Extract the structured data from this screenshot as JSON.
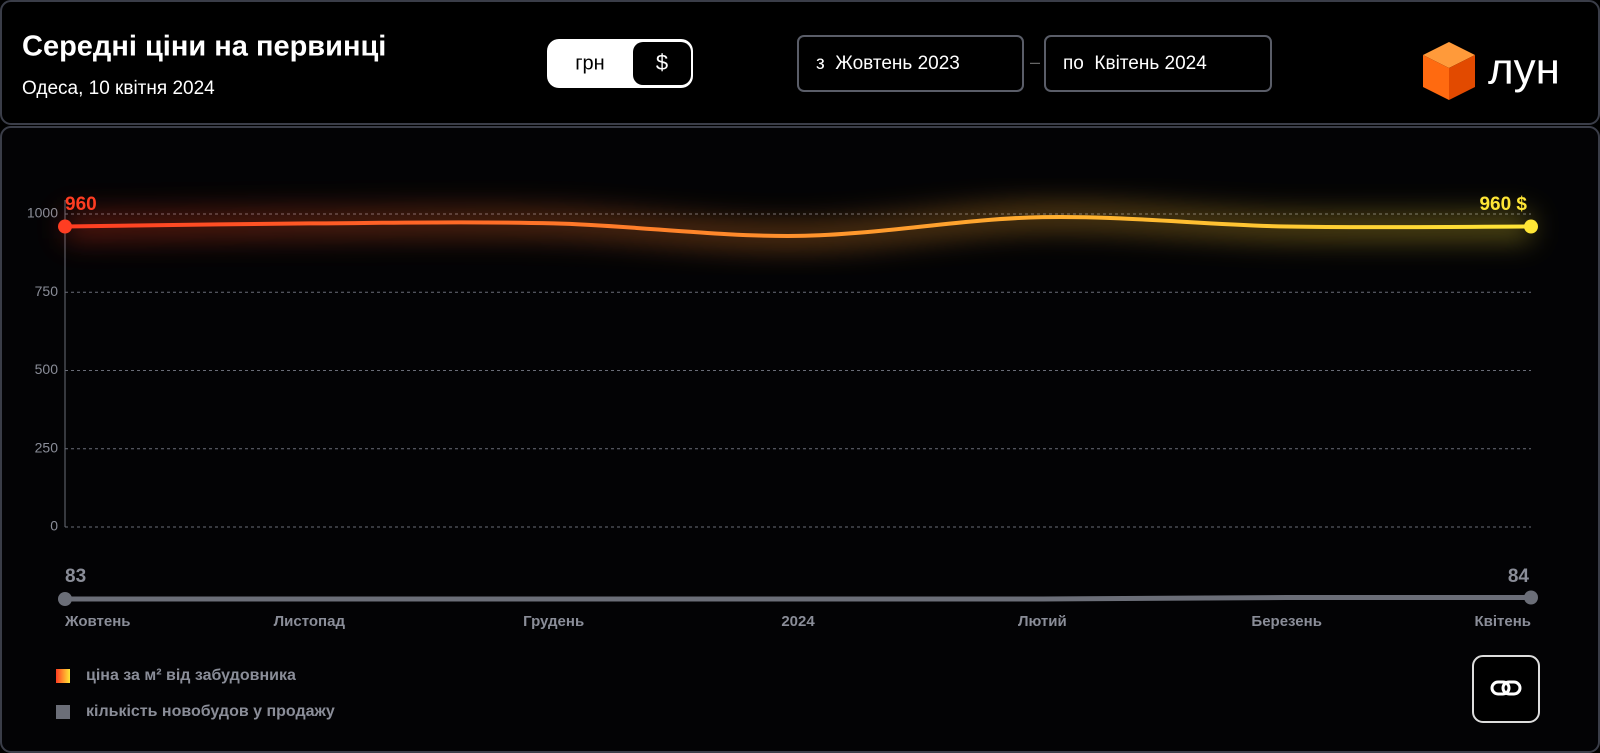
{
  "header": {
    "title": "Середні ціни на первинці",
    "subtitle": "Одеса, 10 квітня 2024",
    "currency_options": [
      "грн",
      "$"
    ],
    "date_from": "з  Жовтень 2023",
    "date_separator": "–",
    "date_to": "по  Квітень 2024",
    "logo": "лун"
  },
  "chart_data": {
    "type": "line",
    "categories": [
      "Жовтень",
      "Листопад",
      "Грудень",
      "2024",
      "Лютий",
      "Березень",
      "Квітень"
    ],
    "series": [
      {
        "name": "ціна за м² від забудовника",
        "color": [
          "#ff3d22",
          "#ffe636"
        ],
        "values": [
          960,
          970,
          970,
          930,
          990,
          960,
          960
        ],
        "value_labels": [
          null,
          null,
          null,
          null,
          null,
          null,
          "960 $"
        ]
      },
      {
        "name": "кількість новобудов у продажу",
        "color": "#6b6e78",
        "values": [
          83,
          83,
          83,
          83,
          83,
          84,
          84
        ]
      }
    ],
    "ylim": [
      0,
      1000
    ],
    "yticks": [
      0,
      250,
      500,
      750,
      1000
    ],
    "grid": true
  }
}
